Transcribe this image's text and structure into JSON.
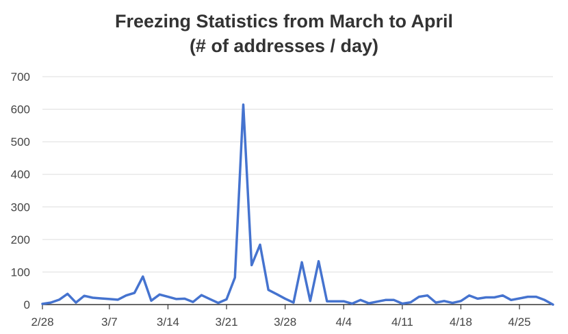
{
  "chart_data": {
    "type": "line",
    "title_lines": [
      "Freezing Statistics from March to April",
      "(# of addresses / day)"
    ],
    "xlabel": "",
    "ylabel": "",
    "ylim": [
      0,
      700
    ],
    "y_ticks": [
      0,
      100,
      200,
      300,
      400,
      500,
      600,
      700
    ],
    "x_tick_labels": [
      "2/28",
      "3/7",
      "3/14",
      "3/21",
      "3/28",
      "4/4",
      "4/11",
      "4/18",
      "4/25"
    ],
    "x_start": "2/28",
    "x_end": "4/29",
    "grid": true,
    "legend": "none",
    "line_color": "#4573cf",
    "series": [
      {
        "x": [
          "2/28",
          "2/29",
          "3/1",
          "3/2",
          "3/3",
          "3/4",
          "3/5",
          "3/6",
          "3/7",
          "3/8",
          "3/9",
          "3/10",
          "3/11",
          "3/12",
          "3/13",
          "3/14",
          "3/15",
          "3/16",
          "3/17",
          "3/18",
          "3/19",
          "3/20",
          "3/21",
          "3/22",
          "3/23",
          "3/24",
          "3/25",
          "3/26",
          "3/27",
          "3/28",
          "3/29",
          "3/30",
          "3/31",
          "4/1",
          "4/2",
          "4/3",
          "4/4",
          "4/5",
          "4/6",
          "4/7",
          "4/8",
          "4/9",
          "4/10",
          "4/11",
          "4/12",
          "4/13",
          "4/14",
          "4/15",
          "4/16",
          "4/17",
          "4/18",
          "4/19",
          "4/20",
          "4/21",
          "4/22",
          "4/23",
          "4/24",
          "4/25",
          "4/26",
          "4/27",
          "4/28",
          "4/29"
        ],
        "values": [
          2,
          6,
          15,
          33,
          6,
          27,
          21,
          19,
          17,
          15,
          28,
          36,
          86,
          12,
          31,
          24,
          17,
          18,
          8,
          29,
          17,
          5,
          16,
          83,
          614,
          121,
          184,
          45,
          32,
          18,
          6,
          130,
          11,
          133,
          10,
          10,
          10,
          3,
          14,
          4,
          9,
          14,
          14,
          3,
          7,
          24,
          28,
          6,
          11,
          5,
          11,
          28,
          18,
          22,
          22,
          28,
          14,
          19,
          24,
          24,
          14,
          0
        ]
      }
    ]
  }
}
